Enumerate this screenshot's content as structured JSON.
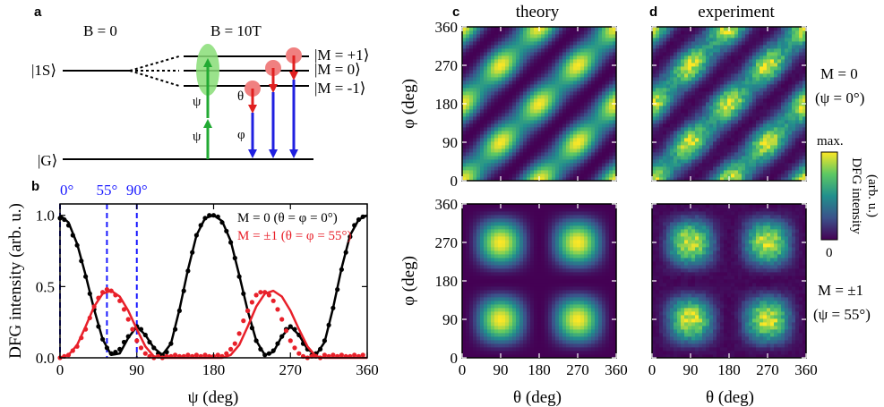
{
  "panel_labels": {
    "a": "a",
    "b": "b",
    "c": "c",
    "d": "d"
  },
  "level_diagram": {
    "left_field_label": "B = 0",
    "right_field_label": "B = 10T",
    "excited_state_label": "|1S⟩",
    "ground_state_label": "|G⟩",
    "sublevels": [
      "|M = +1⟩",
      "|M = 0⟩",
      "|M = -1⟩"
    ],
    "psi_label": "ψ",
    "theta_label": "θ",
    "phi_label": "φ",
    "colors": {
      "pump": "#22aa33",
      "probe": "#2020e0",
      "idler": "#e02020",
      "pump_ellipse": "#88dd77",
      "idler_dot": "#f08080"
    }
  },
  "chart_data": [
    {
      "id": "b",
      "type": "line",
      "xlabel": "ψ (deg)",
      "ylabel": "DFG intensity (arb. u.)",
      "xlim": [
        0,
        360
      ],
      "ylim": [
        0,
        1.08
      ],
      "xticks": [
        0,
        90,
        180,
        270,
        360
      ],
      "yticks": [
        0.0,
        0.5,
        1.0
      ],
      "ytick_labels": [
        "0.0",
        "0.5",
        "1.0"
      ],
      "vlines": [
        {
          "x": 0,
          "label": "0°"
        },
        {
          "x": 55,
          "label": "55°"
        },
        {
          "x": 90,
          "label": "90°"
        }
      ],
      "vline_color": "#1a1aff",
      "legend_placement": "top-right",
      "series": [
        {
          "name": "M = 0    (θ = φ = 0°)",
          "color": "#000000",
          "fit_x": [
            0,
            10,
            20,
            30,
            40,
            50,
            60,
            70,
            80,
            90,
            100,
            110,
            120,
            130,
            140,
            150,
            160,
            170,
            180,
            190,
            200,
            210,
            220,
            230,
            240,
            250,
            260,
            270,
            280,
            290,
            300,
            310,
            320,
            330,
            340,
            350,
            360
          ],
          "fit_y": [
            1.0,
            0.95,
            0.8,
            0.58,
            0.34,
            0.13,
            0.02,
            0.03,
            0.14,
            0.22,
            0.16,
            0.07,
            0.02,
            0.1,
            0.34,
            0.62,
            0.86,
            0.98,
            1.0,
            0.96,
            0.82,
            0.58,
            0.33,
            0.12,
            0.02,
            0.04,
            0.15,
            0.22,
            0.16,
            0.06,
            0.02,
            0.11,
            0.35,
            0.63,
            0.86,
            0.97,
            1.0
          ],
          "data_x": [
            0,
            5,
            10,
            15,
            20,
            25,
            30,
            35,
            40,
            45,
            50,
            55,
            60,
            65,
            70,
            75,
            80,
            85,
            90,
            95,
            100,
            105,
            110,
            115,
            120,
            125,
            130,
            135,
            140,
            145,
            150,
            155,
            160,
            165,
            170,
            175,
            180,
            185,
            190,
            195,
            200,
            205,
            210,
            215,
            220,
            225,
            230,
            235,
            240,
            245,
            250,
            255,
            260,
            265,
            270,
            275,
            280,
            285,
            290,
            295,
            300,
            305,
            310,
            315,
            320,
            325,
            330,
            335,
            340,
            345,
            350,
            355
          ],
          "data_y": [
            0.98,
            0.97,
            0.93,
            0.86,
            0.79,
            0.68,
            0.57,
            0.45,
            0.34,
            0.22,
            0.13,
            0.07,
            0.03,
            0.04,
            0.06,
            0.11,
            0.15,
            0.2,
            0.22,
            0.2,
            0.16,
            0.11,
            0.07,
            0.03,
            0.02,
            0.04,
            0.1,
            0.2,
            0.33,
            0.47,
            0.61,
            0.74,
            0.86,
            0.93,
            0.98,
            1.0,
            1.0,
            0.99,
            0.95,
            0.89,
            0.81,
            0.7,
            0.57,
            0.45,
            0.33,
            0.21,
            0.12,
            0.06,
            0.02,
            0.03,
            0.05,
            0.1,
            0.15,
            0.2,
            0.22,
            0.2,
            0.16,
            0.1,
            0.06,
            0.02,
            0.03,
            0.06,
            0.12,
            0.23,
            0.35,
            0.48,
            0.62,
            0.74,
            0.85,
            0.93,
            0.97,
            0.99
          ]
        },
        {
          "name": "M = ±1 (θ = φ = 55°)",
          "color": "#e8202a",
          "fit_x": [
            0,
            10,
            20,
            30,
            40,
            50,
            60,
            70,
            80,
            90,
            100,
            110,
            120,
            130,
            140,
            150,
            160,
            170,
            180,
            190,
            200,
            210,
            220,
            230,
            240,
            250,
            260,
            270,
            280,
            290,
            300,
            310,
            320,
            330,
            340,
            350,
            360
          ],
          "fit_y": [
            0.0,
            0.02,
            0.09,
            0.22,
            0.36,
            0.45,
            0.47,
            0.43,
            0.33,
            0.2,
            0.08,
            0.01,
            0.0,
            0.0,
            0.0,
            0.0,
            0.0,
            0.0,
            0.0,
            0.0,
            0.02,
            0.09,
            0.22,
            0.36,
            0.45,
            0.47,
            0.43,
            0.33,
            0.2,
            0.08,
            0.01,
            0.0,
            0.0,
            0.0,
            0.0,
            0.0,
            0.0
          ],
          "data_x": [
            0,
            5,
            10,
            15,
            20,
            25,
            30,
            35,
            40,
            45,
            50,
            55,
            60,
            65,
            70,
            75,
            80,
            85,
            90,
            95,
            100,
            105,
            110,
            115,
            120,
            125,
            130,
            135,
            140,
            145,
            150,
            155,
            160,
            165,
            170,
            175,
            180,
            185,
            190,
            195,
            200,
            205,
            210,
            215,
            220,
            225,
            230,
            235,
            240,
            245,
            250,
            255,
            260,
            265,
            270,
            275,
            280,
            285,
            290,
            295,
            300,
            305,
            310,
            315,
            320,
            325,
            330,
            335,
            340,
            345,
            350,
            355
          ],
          "data_y": [
            0.0,
            0.01,
            0.02,
            0.05,
            0.08,
            0.14,
            0.2,
            0.28,
            0.36,
            0.42,
            0.46,
            0.48,
            0.47,
            0.44,
            0.4,
            0.34,
            0.27,
            0.2,
            0.12,
            0.07,
            0.03,
            0.01,
            0.0,
            0.01,
            0.0,
            0.01,
            0.01,
            0.02,
            0.01,
            0.01,
            0.02,
            0.01,
            0.02,
            0.01,
            0.02,
            0.01,
            0.01,
            0.02,
            0.01,
            0.03,
            0.06,
            0.1,
            0.17,
            0.26,
            0.33,
            0.39,
            0.44,
            0.46,
            0.46,
            0.44,
            0.4,
            0.34,
            0.27,
            0.19,
            0.12,
            0.07,
            0.03,
            0.01,
            0.0,
            0.01,
            0.01,
            0.0,
            0.02,
            0.01,
            0.02,
            0.01,
            0.02,
            0.01,
            0.01,
            0.02,
            0.01,
            0.02
          ]
        }
      ]
    },
    {
      "id": "c-top",
      "type": "heatmap",
      "title": "theory",
      "xlabel": "",
      "ylabel": "φ (deg)",
      "xlim": [
        0,
        360
      ],
      "ylim": [
        0,
        360
      ],
      "ticks": [
        0,
        90,
        180,
        270,
        360
      ],
      "state": "M = 0"
    },
    {
      "id": "d-top",
      "type": "heatmap",
      "title": "experiment",
      "xlabel": "",
      "ylabel": "",
      "xlim": [
        0,
        360
      ],
      "ylim": [
        0,
        360
      ],
      "ticks": [
        0,
        90,
        180,
        270,
        360
      ],
      "state": "M = 0",
      "annotation": [
        "M = 0",
        "(ψ = 0°)"
      ]
    },
    {
      "id": "c-bottom",
      "type": "heatmap",
      "xlabel": "θ (deg)",
      "ylabel": "φ (deg)",
      "xlim": [
        0,
        360
      ],
      "ylim": [
        0,
        360
      ],
      "ticks": [
        0,
        90,
        180,
        270,
        360
      ],
      "state": "M = ±1"
    },
    {
      "id": "d-bottom",
      "type": "heatmap",
      "xlabel": "θ (deg)",
      "ylabel": "",
      "xlim": [
        0,
        360
      ],
      "ylim": [
        0,
        360
      ],
      "ticks": [
        0,
        90,
        180,
        270,
        360
      ],
      "state": "M = ±1",
      "annotation": [
        "M = ±1",
        "(ψ = 55°)"
      ]
    }
  ],
  "colorbar": {
    "max_label": "max.",
    "min_label": "0",
    "title_line1": "DFG intensity",
    "title_line2": "(arb. u.)",
    "colormap": [
      "#440154",
      "#3b528b",
      "#21908d",
      "#5dc863",
      "#fde725"
    ]
  }
}
